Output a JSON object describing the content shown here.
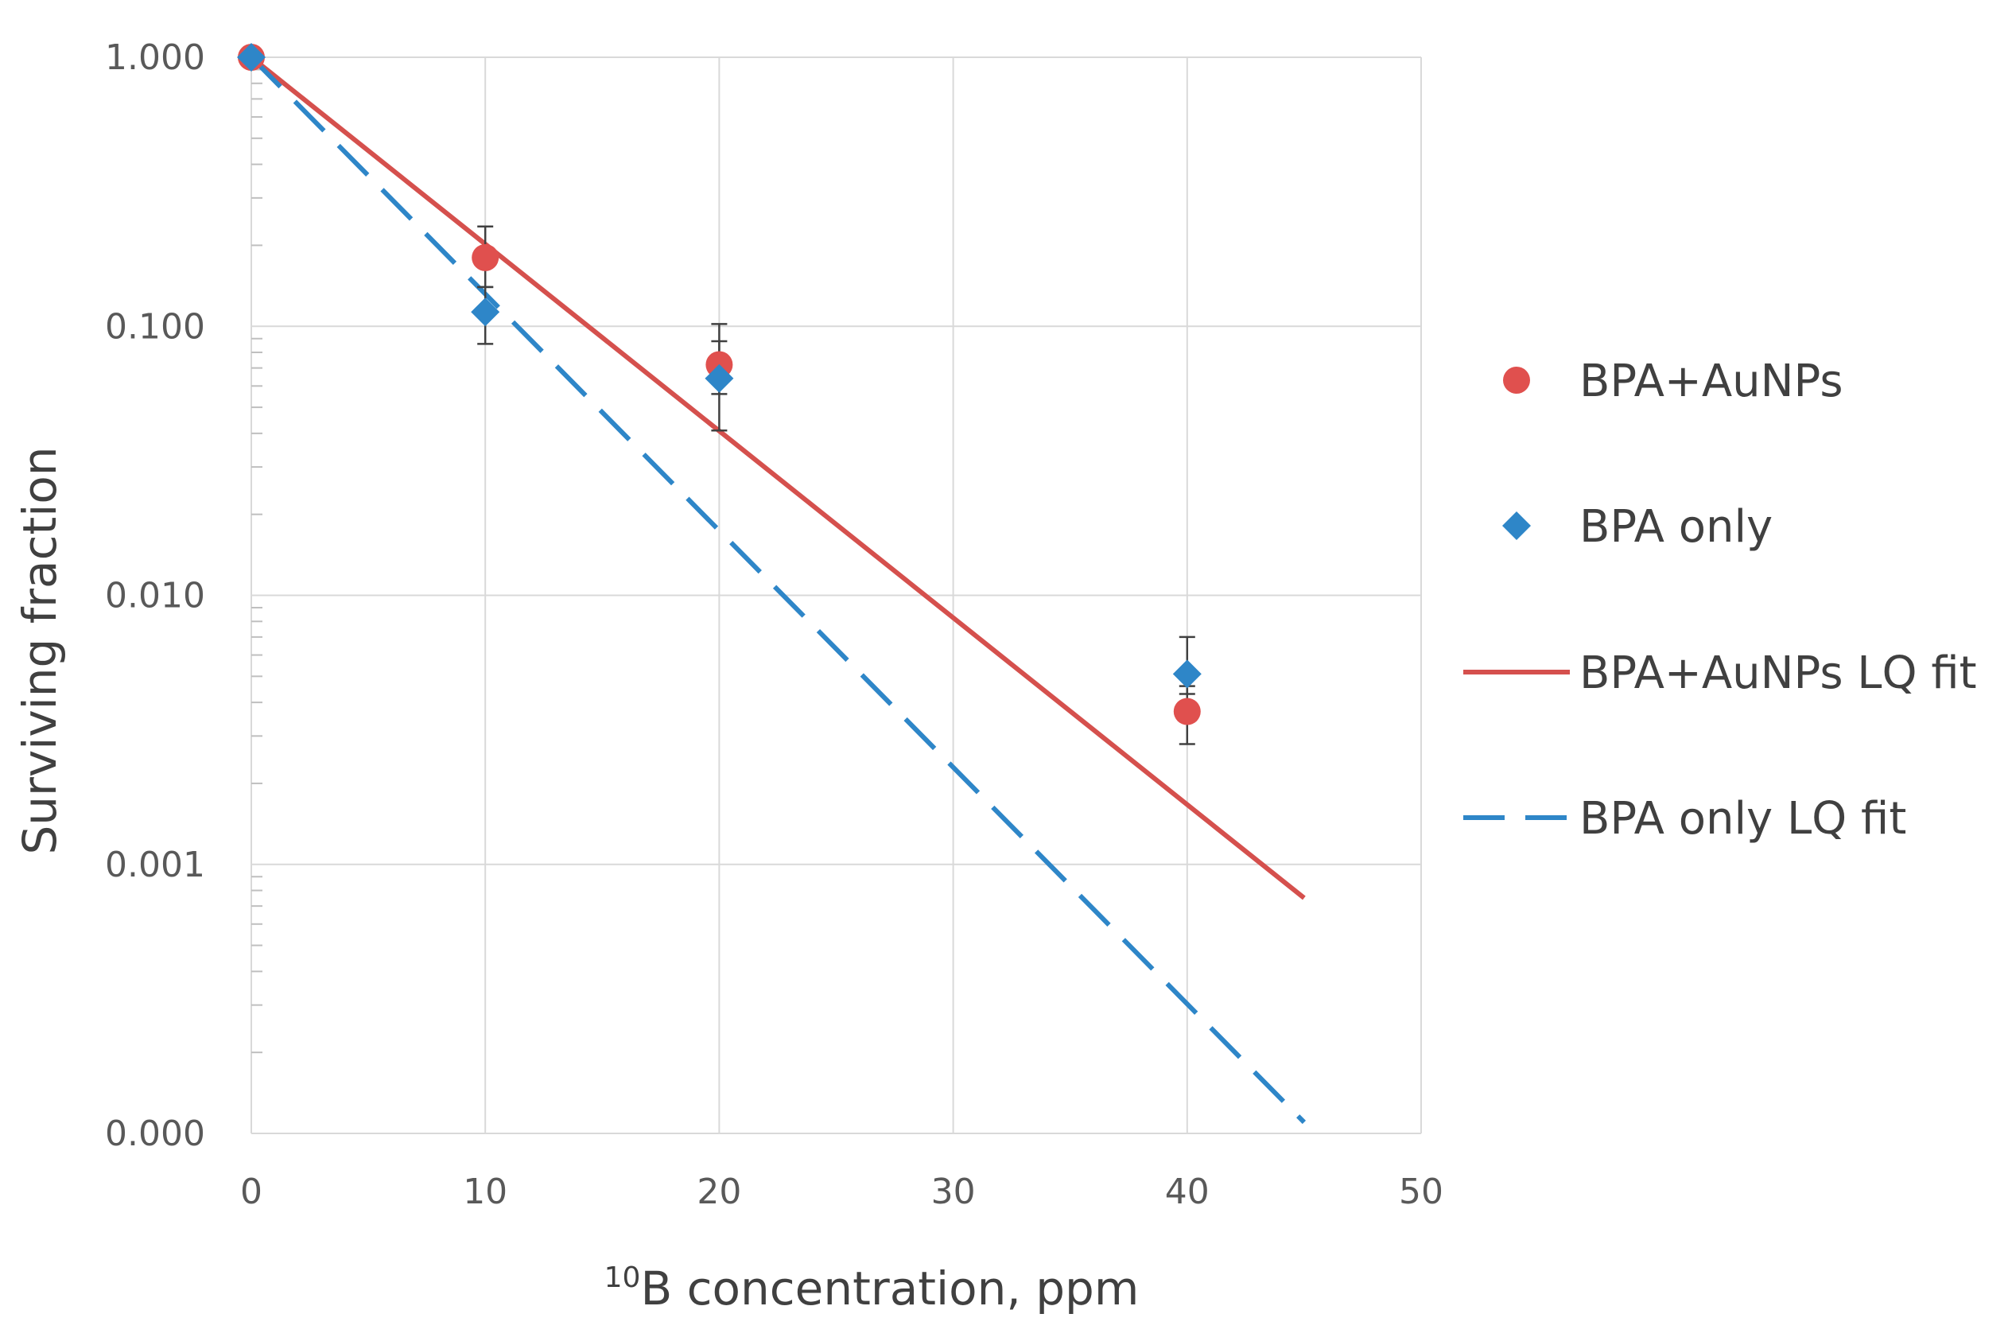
{
  "chart_data": {
    "type": "scatter",
    "title": "",
    "xlabel": {
      "superscript": "10",
      "text": "B concentration, ppm"
    },
    "ylabel": "Surviving fraction",
    "xlim": [
      0,
      50
    ],
    "ylim": [
      0.0001,
      1
    ],
    "yscale": "log",
    "grid": true,
    "legend_position": "right",
    "x_ticks": [
      {
        "value": 0,
        "label": "0"
      },
      {
        "value": 10,
        "label": "10"
      },
      {
        "value": 20,
        "label": "20"
      },
      {
        "value": 30,
        "label": "30"
      },
      {
        "value": 40,
        "label": "40"
      },
      {
        "value": 50,
        "label": "50"
      }
    ],
    "y_ticks": [
      {
        "value": 1,
        "label": "1.000"
      },
      {
        "value": 0.1,
        "label": "0.100"
      },
      {
        "value": 0.01,
        "label": "0.010"
      },
      {
        "value": 0.001,
        "label": "0.001"
      },
      {
        "value": 0.0001,
        "label": "0.000"
      }
    ],
    "series": [
      {
        "name": "BPA+AuNPs",
        "kind": "points",
        "marker": "circle",
        "color": "#e0504e",
        "points": [
          {
            "x": 0,
            "y": 1.0,
            "err_low": 1.0,
            "err_high": 1.0
          },
          {
            "x": 10,
            "y": 0.18,
            "err_low": 0.14,
            "err_high": 0.235
          },
          {
            "x": 20,
            "y": 0.072,
            "err_low": 0.056,
            "err_high": 0.102
          },
          {
            "x": 40,
            "y": 0.0037,
            "err_low": 0.0028,
            "err_high": 0.0046
          }
        ]
      },
      {
        "name": "BPA only",
        "kind": "points",
        "marker": "diamond",
        "color": "#2e86c8",
        "points": [
          {
            "x": 0,
            "y": 1.0,
            "err_low": 1.0,
            "err_high": 1.0
          },
          {
            "x": 10,
            "y": 0.113,
            "err_low": 0.086,
            "err_high": 0.14
          },
          {
            "x": 20,
            "y": 0.064,
            "err_low": 0.041,
            "err_high": 0.088
          },
          {
            "x": 40,
            "y": 0.0051,
            "err_low": 0.0043,
            "err_high": 0.007
          }
        ]
      },
      {
        "name": "BPA+AuNPs LQ fit",
        "kind": "line",
        "style": "solid",
        "color": "#d5504d",
        "x": [
          0,
          45
        ],
        "y": [
          1.0,
          0.00075
        ]
      },
      {
        "name": "BPA only LQ fit",
        "kind": "line",
        "style": "dashed",
        "color": "#2e86c8",
        "x": [
          0,
          45
        ],
        "y": [
          1.0,
          0.00011
        ]
      }
    ]
  }
}
